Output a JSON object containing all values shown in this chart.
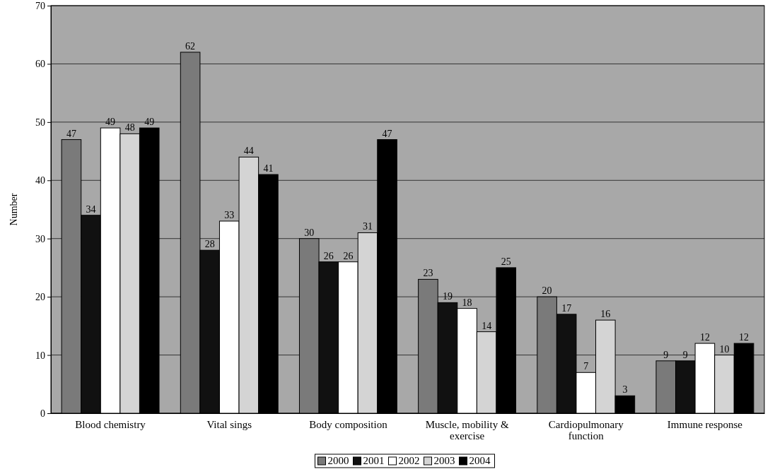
{
  "chart_data": {
    "type": "bar",
    "ylabel": "Number",
    "categories": [
      "Blood chemistry",
      "Vital sings",
      "Body composition",
      "Muscle, mobility & exercise",
      "Cardiopulmonary function",
      "Immune response"
    ],
    "series": [
      {
        "name": "2000",
        "color": "#7a7a7a",
        "values": [
          47,
          62,
          30,
          23,
          20,
          9
        ]
      },
      {
        "name": "2001",
        "color": "#111111",
        "values": [
          34,
          28,
          26,
          19,
          17,
          9
        ]
      },
      {
        "name": "2002",
        "color": "#ffffff",
        "values": [
          49,
          33,
          26,
          18,
          7,
          12
        ]
      },
      {
        "name": "2003",
        "color": "#d4d4d4",
        "values": [
          48,
          44,
          31,
          14,
          16,
          10
        ]
      },
      {
        "name": "2004",
        "color": "#000000",
        "values": [
          49,
          41,
          47,
          25,
          3,
          12
        ]
      }
    ],
    "ylim": [
      0,
      70
    ],
    "yticks": [
      0,
      10,
      20,
      30,
      40,
      50,
      60,
      70
    ],
    "grid": "y",
    "legend": "bottom",
    "data_labels": true
  }
}
